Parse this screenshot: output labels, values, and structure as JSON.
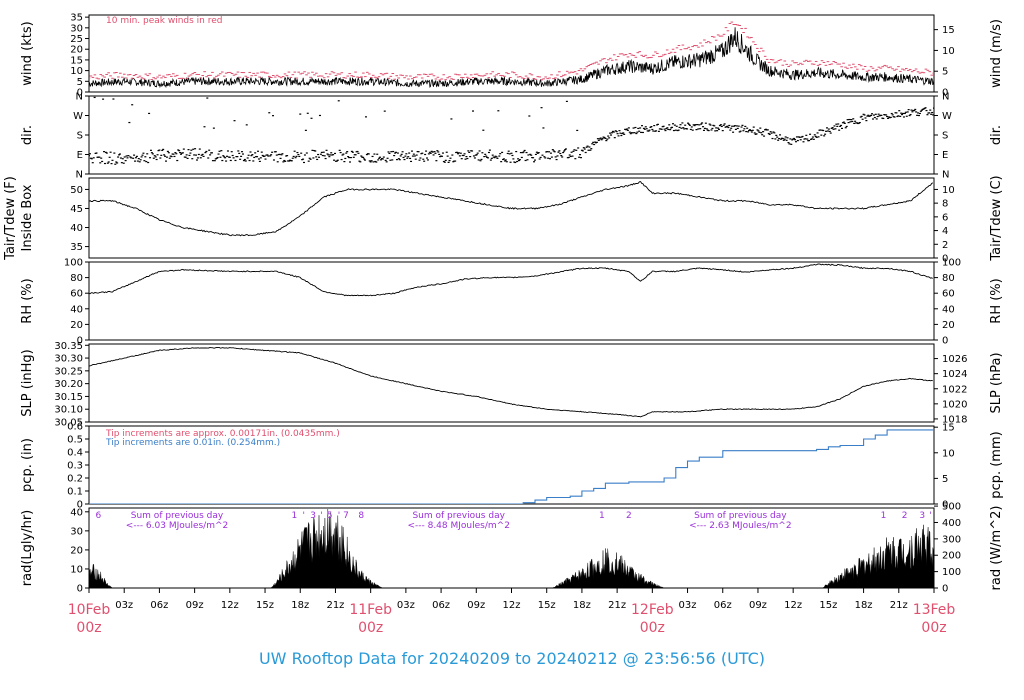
{
  "chart_data": {
    "type": "line",
    "title": "UW Rooftop Data for 20240209  to  20240212 @ 23:56:56  (UTC)",
    "colors": {
      "wind": "#000000",
      "peak_wind": "#e0506e",
      "precip": "#3a7ec8",
      "annotation_purple": "#9b30d9",
      "date_label": "#e0506e",
      "title": "#2a9ad8"
    },
    "x_axis": {
      "hours_range": [
        0,
        72
      ],
      "ticks": [
        {
          "h": 0,
          "label": "10Feb",
          "sub": "00z",
          "day": true
        },
        {
          "h": 3,
          "label": "03z"
        },
        {
          "h": 6,
          "label": "06z"
        },
        {
          "h": 9,
          "label": "09z"
        },
        {
          "h": 12,
          "label": "12z"
        },
        {
          "h": 15,
          "label": "15z"
        },
        {
          "h": 18,
          "label": "18z"
        },
        {
          "h": 21,
          "label": "21z"
        },
        {
          "h": 24,
          "label": "11Feb",
          "sub": "00z",
          "day": true
        },
        {
          "h": 27,
          "label": "03z"
        },
        {
          "h": 30,
          "label": "06z"
        },
        {
          "h": 33,
          "label": "09z"
        },
        {
          "h": 36,
          "label": "12z"
        },
        {
          "h": 39,
          "label": "15z"
        },
        {
          "h": 42,
          "label": "18z"
        },
        {
          "h": 45,
          "label": "21z"
        },
        {
          "h": 48,
          "label": "12Feb",
          "sub": "00z",
          "day": true
        },
        {
          "h": 51,
          "label": "03z"
        },
        {
          "h": 54,
          "label": "06z"
        },
        {
          "h": 57,
          "label": "09z"
        },
        {
          "h": 60,
          "label": "12z"
        },
        {
          "h": 63,
          "label": "15z"
        },
        {
          "h": 66,
          "label": "18z"
        },
        {
          "h": 69,
          "label": "21z"
        },
        {
          "h": 72,
          "label": "13Feb",
          "sub": "00z",
          "day": true
        }
      ]
    },
    "panels": [
      {
        "id": "wind",
        "ylabel": "wind (kts)",
        "ylabel_right": "wind (m/s)",
        "ylim": [
          0,
          36
        ],
        "yticks": [
          "0",
          "5",
          "10",
          "15",
          "20",
          "25",
          "30",
          "35"
        ],
        "ytick_values": [
          0,
          5,
          10,
          15,
          20,
          25,
          30,
          35
        ],
        "yticks_right": [
          "0",
          "5",
          "10",
          "15"
        ],
        "yticks_right_values": [
          0,
          9.72,
          19.44,
          29.16
        ],
        "annotation": "10 min. peak winds in red",
        "series": [
          {
            "name": "wind",
            "hours": [
              0,
              3,
              6,
              9,
              12,
              15,
              18,
              21,
              24,
              27,
              30,
              33,
              36,
              39,
              42,
              44,
              46,
              48,
              50,
              52,
              54,
              55,
              56,
              57,
              58,
              60,
              62,
              64,
              66,
              68,
              70,
              72
            ],
            "values": [
              4,
              5,
              4,
              5,
              5,
              5,
              5,
              5,
              5,
              4,
              4,
              5,
              5,
              4,
              6,
              10,
              12,
              11,
              14,
              15,
              19,
              26,
              20,
              14,
              10,
              8,
              9,
              8,
              7,
              7,
              6,
              5
            ]
          },
          {
            "name": "peak",
            "hours": [
              0,
              3,
              6,
              9,
              12,
              15,
              18,
              21,
              24,
              27,
              30,
              33,
              36,
              39,
              42,
              44,
              46,
              48,
              50,
              52,
              54,
              55,
              56,
              57,
              58,
              60,
              62,
              64,
              66,
              68,
              70,
              72
            ],
            "values": [
              7,
              8,
              7,
              8,
              8,
              8,
              8,
              8,
              8,
              7,
              7,
              8,
              8,
              7,
              10,
              15,
              18,
              17,
              20,
              22,
              27,
              33,
              28,
              21,
              15,
              13,
              14,
              13,
              11,
              11,
              10,
              9
            ]
          }
        ]
      },
      {
        "id": "dir",
        "ylabel": "dir.",
        "ylabel_right": "dir.",
        "ylim": [
          0,
          360
        ],
        "yticks": [
          "N",
          "E",
          "S",
          "W",
          "N"
        ],
        "ytick_values": [
          0,
          90,
          180,
          270,
          360
        ],
        "series": [
          {
            "name": "direction",
            "hours": [
              0,
              3,
              6,
              9,
              12,
              15,
              18,
              21,
              24,
              27,
              30,
              33,
              36,
              39,
              42,
              44,
              46,
              48,
              51,
              54,
              57,
              60,
              61,
              63,
              66,
              68,
              70,
              72
            ],
            "values": [
              80,
              70,
              85,
              90,
              80,
              80,
              80,
              85,
              80,
              85,
              80,
              85,
              80,
              85,
              100,
              170,
              200,
              210,
              220,
              215,
              200,
              150,
              160,
              200,
              260,
              270,
              285,
              290
            ]
          }
        ]
      },
      {
        "id": "temp",
        "ylabel": "Tair/Tdew (F)",
        "ylabel2": "Inside Box",
        "ylabel_right": "Tair/Tdew (C)",
        "ylim": [
          32,
          53
        ],
        "yticks": [
          "35",
          "40",
          "45",
          "50"
        ],
        "ytick_values": [
          35,
          40,
          45,
          50
        ],
        "yticks_right": [
          "0",
          "2",
          "4",
          "6",
          "8",
          "10"
        ],
        "yticks_right_values": [
          32,
          35.6,
          39.2,
          42.8,
          46.4,
          50
        ],
        "series": [
          {
            "name": "temperature",
            "hours": [
              0,
              2,
              4,
              6,
              8,
              10,
              12,
              14,
              16,
              18,
              20,
              22,
              24,
              26,
              28,
              30,
              32,
              34,
              36,
              38,
              40,
              42,
              44,
              46,
              47,
              48,
              50,
              52,
              54,
              56,
              58,
              60,
              62,
              64,
              66,
              68,
              70,
              72
            ],
            "values": [
              47,
              47,
              45,
              42,
              40,
              39,
              38,
              38,
              39,
              43,
              48,
              50,
              50,
              50,
              49,
              48,
              47,
              46,
              45,
              45,
              46,
              48,
              50,
              51,
              52,
              49,
              49,
              48,
              47,
              47,
              46,
              46,
              45,
              45,
              45,
              46,
              47,
              52
            ]
          }
        ]
      },
      {
        "id": "rh",
        "ylabel": "RH (%)",
        "ylabel_right": "RH (%)",
        "ylim": [
          0,
          100
        ],
        "yticks": [
          "0",
          "20",
          "40",
          "60",
          "80",
          "100"
        ],
        "ytick_values": [
          0,
          20,
          40,
          60,
          80,
          100
        ],
        "series": [
          {
            "name": "rh",
            "hours": [
              0,
              2,
              4,
              6,
              8,
              10,
              12,
              14,
              16,
              18,
              20,
              22,
              24,
              26,
              28,
              30,
              32,
              34,
              36,
              38,
              40,
              42,
              44,
              46,
              47,
              48,
              50,
              52,
              54,
              56,
              58,
              60,
              62,
              64,
              66,
              68,
              70,
              72
            ],
            "values": [
              60,
              62,
              75,
              88,
              90,
              89,
              88,
              88,
              88,
              80,
              62,
              57,
              57,
              60,
              68,
              72,
              78,
              80,
              80,
              82,
              87,
              92,
              92,
              88,
              75,
              88,
              88,
              92,
              90,
              87,
              90,
              92,
              97,
              96,
              92,
              92,
              88,
              78
            ]
          }
        ]
      },
      {
        "id": "slp",
        "ylabel": "SLP (inHg)",
        "ylabel_right": "SLP (hPa)",
        "ylim": [
          30.05,
          30.355
        ],
        "yticks": [
          "30.05",
          "30.10",
          "30.15",
          "30.20",
          "30.25",
          "30.30",
          "30.35"
        ],
        "ytick_values": [
          30.05,
          30.1,
          30.15,
          30.2,
          30.25,
          30.3,
          30.35
        ],
        "yticks_right": [
          "1018",
          "1020",
          "1022",
          "1024",
          "1026"
        ],
        "yticks_right_values": [
          30.062,
          30.121,
          30.18,
          30.239,
          30.298
        ],
        "series": [
          {
            "name": "pressure",
            "hours": [
              0,
              3,
              6,
              9,
              12,
              15,
              18,
              21,
              24,
              27,
              30,
              33,
              36,
              39,
              42,
              45,
              47,
              48,
              51,
              54,
              57,
              60,
              62,
              64,
              66,
              68,
              70,
              72
            ],
            "values": [
              30.27,
              30.3,
              30.33,
              30.34,
              30.34,
              30.33,
              30.32,
              30.28,
              30.23,
              30.2,
              30.17,
              30.15,
              30.12,
              30.1,
              30.09,
              30.08,
              30.07,
              30.09,
              30.09,
              30.1,
              30.1,
              30.1,
              30.11,
              30.14,
              30.19,
              30.21,
              30.22,
              30.21
            ]
          }
        ]
      },
      {
        "id": "pcp",
        "ylabel": "pcp. (in)",
        "ylabel_right": "pcp. (mm)",
        "ylim": [
          0,
          0.6
        ],
        "yticks": [
          "0",
          "0.1",
          "0.2",
          "0.3",
          "0.4",
          "0.5",
          "0.6"
        ],
        "ytick_values": [
          0,
          0.1,
          0.2,
          0.3,
          0.4,
          0.5,
          0.6
        ],
        "yticks_right": [
          "0",
          "5",
          "10",
          "15"
        ],
        "yticks_right_values": [
          0,
          0.197,
          0.394,
          0.591
        ],
        "annotations": [
          "Tip increments are approx. 0.00171in. (0.0435mm.)",
          "Tip increments are 0.01in. (0.254mm.)"
        ],
        "series": [
          {
            "name": "precip",
            "hours": [
              0,
              36,
              37,
              38,
              39,
              40,
              41,
              42,
              43,
              44,
              46,
              48,
              49,
              50,
              51,
              52,
              54,
              56,
              60,
              62,
              63,
              64,
              65,
              66,
              67,
              68,
              70,
              72
            ],
            "values": [
              0,
              0,
              0.01,
              0.03,
              0.05,
              0.05,
              0.06,
              0.1,
              0.12,
              0.16,
              0.17,
              0.17,
              0.2,
              0.28,
              0.33,
              0.36,
              0.41,
              0.41,
              0.41,
              0.42,
              0.44,
              0.45,
              0.45,
              0.5,
              0.53,
              0.57,
              0.57,
              0.57
            ]
          }
        ]
      },
      {
        "id": "rad",
        "ylabel": "rad(Lgly/hr)",
        "ylabel_right": "rad (W/m^2)",
        "ylim": [
          0,
          42
        ],
        "yticks": [
          "0",
          "10",
          "20",
          "30",
          "40"
        ],
        "ytick_values": [
          0,
          10,
          20,
          30,
          40
        ],
        "yticks_right": [
          "0",
          "100",
          "200",
          "300",
          "400",
          "500"
        ],
        "yticks_right_values": [
          0,
          8.6,
          17.2,
          25.8,
          34.4,
          43
        ],
        "day_notes": [
          {
            "h": 7.5,
            "line1": "Sum of previous day",
            "line2": "<--- 6.03 MJoules/m^2"
          },
          {
            "h": 31.5,
            "line1": "Sum of previous day",
            "line2": "<--- 8.48 MJoules/m^2"
          },
          {
            "h": 55.5,
            "line1": "Sum of previous day",
            "line2": "<--- 2.63 MJoules/m^2"
          }
        ],
        "hour_marks": [
          {
            "h": 0.8,
            "label": "6"
          },
          {
            "h": 17.5,
            "label": "1"
          },
          {
            "h": 18.3,
            "label": "'"
          },
          {
            "h": 19.1,
            "label": "3"
          },
          {
            "h": 19.8,
            "label": "'"
          },
          {
            "h": 20.5,
            "label": "5"
          },
          {
            "h": 21.3,
            "label": "'"
          },
          {
            "h": 21.9,
            "label": "7"
          },
          {
            "h": 23.2,
            "label": "8"
          },
          {
            "h": 43.7,
            "label": "1"
          },
          {
            "h": 46.0,
            "label": "2"
          },
          {
            "h": 67.7,
            "label": "1"
          },
          {
            "h": 69.5,
            "label": "2"
          },
          {
            "h": 71.0,
            "label": "3"
          },
          {
            "h": 71.7,
            "label": "'"
          }
        ],
        "series": [
          {
            "name": "radiation",
            "hours": [
              0,
              0.5,
              1,
              1.5,
              2,
              15.5,
              16,
              17,
              18,
              19,
              20,
              20.5,
              21,
              21.5,
              22,
              22.5,
              23,
              24,
              25,
              39.5,
              40,
              41,
              42,
              43,
              44,
              45,
              46,
              47,
              48,
              49,
              62.5,
              63,
              64,
              65,
              66,
              67,
              68,
              69,
              70,
              71,
              71.5,
              72
            ],
            "values": [
              10,
              12,
              8,
              3,
              0,
              0,
              4,
              15,
              27,
              35,
              40,
              42,
              41,
              36,
              25,
              17,
              10,
              4,
              0,
              0,
              2,
              6,
              10,
              15,
              20,
              18,
              12,
              7,
              3,
              0,
              0,
              3,
              8,
              12,
              16,
              20,
              25,
              26,
              27,
              33,
              30,
              25
            ]
          }
        ]
      }
    ]
  }
}
